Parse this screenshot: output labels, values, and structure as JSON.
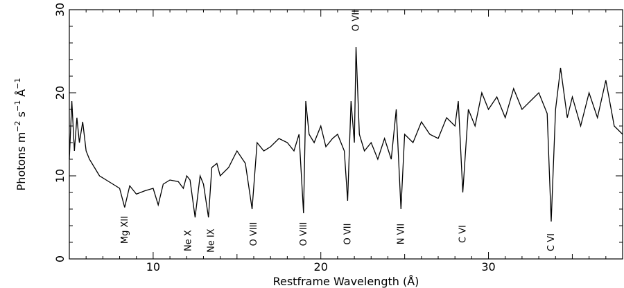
{
  "chart_data": {
    "type": "line",
    "title": "",
    "xlabel": "Restframe Wavelength (Å)",
    "ylabel": {
      "base": "Photons m",
      "exp1": "−2",
      "mid1": " s",
      "exp2": "−1",
      "mid2": " Å",
      "exp3": "−1"
    },
    "xlim": [
      5,
      38
    ],
    "ylim": [
      0,
      30
    ],
    "x_ticks": [
      10,
      20,
      30
    ],
    "y_ticks": [
      0,
      10,
      20,
      30
    ],
    "grid": false,
    "series": [
      {
        "x": [
          5.0,
          5.15,
          5.3,
          5.45,
          5.6,
          5.8,
          6.0,
          6.2,
          6.5,
          6.8,
          7.2,
          7.6,
          8.0,
          8.3,
          8.6,
          9.0,
          9.5,
          10.0,
          10.3,
          10.6,
          11.0,
          11.5,
          11.8,
          12.0,
          12.2,
          12.5,
          12.8,
          13.0,
          13.3,
          13.5,
          13.8,
          14.0,
          14.5,
          15.0,
          15.5,
          15.9,
          16.2,
          16.6,
          17.0,
          17.5,
          18.0,
          18.4,
          18.7,
          18.97,
          19.1,
          19.3,
          19.6,
          20.0,
          20.3,
          20.7,
          21.0,
          21.4,
          21.6,
          21.8,
          22.0,
          22.1,
          22.3,
          22.6,
          23.0,
          23.4,
          23.8,
          24.2,
          24.5,
          24.78,
          25.0,
          25.5,
          26.0,
          26.5,
          27.0,
          27.5,
          28.0,
          28.2,
          28.47,
          28.8,
          29.2,
          29.6,
          30.0,
          30.5,
          31.0,
          31.5,
          32.0,
          32.5,
          33.0,
          33.5,
          33.74,
          34.0,
          34.3,
          34.7,
          35.0,
          35.5,
          36.0,
          36.5,
          37.0,
          37.5,
          38.0
        ],
        "y": [
          12.0,
          19.0,
          13.0,
          17.0,
          14.0,
          16.5,
          13.0,
          12.0,
          11.0,
          10.0,
          9.5,
          9.0,
          8.5,
          6.2,
          8.8,
          7.8,
          8.2,
          8.5,
          6.5,
          9.0,
          9.5,
          9.3,
          8.5,
          10.0,
          9.5,
          5.0,
          10.0,
          9.0,
          5.0,
          11.0,
          11.5,
          10.0,
          11.0,
          13.0,
          11.5,
          6.0,
          14.0,
          13.0,
          13.5,
          14.5,
          14.0,
          13.0,
          15.0,
          5.5,
          19.0,
          15.0,
          14.0,
          16.0,
          13.5,
          14.5,
          15.0,
          13.0,
          7.0,
          19.0,
          14.0,
          25.5,
          15.0,
          13.0,
          14.0,
          12.0,
          14.5,
          12.0,
          18.0,
          6.0,
          15.0,
          14.0,
          16.5,
          15.0,
          14.5,
          17.0,
          16.0,
          19.0,
          8.0,
          18.0,
          16.0,
          20.0,
          18.0,
          19.5,
          17.0,
          20.5,
          18.0,
          19.0,
          20.0,
          17.5,
          4.5,
          18.0,
          23.0,
          17.0,
          19.5,
          16.0,
          20.0,
          17.0,
          21.5,
          16.0,
          15.0
        ]
      }
    ],
    "line_labels": [
      {
        "label": "Mg XII",
        "x": 8.3,
        "y": 3.5
      },
      {
        "label": "Ne X",
        "x": 12.1,
        "y": 2.2
      },
      {
        "label": "Ne IX",
        "x": 13.45,
        "y": 2.2
      },
      {
        "label": "O VIII",
        "x": 16.0,
        "y": 3.0
      },
      {
        "label": "O VIII",
        "x": 18.97,
        "y": 3.0
      },
      {
        "label": "O VII",
        "x": 21.6,
        "y": 3.0
      },
      {
        "label": "O VII",
        "x": 22.1,
        "y": 28.7
      },
      {
        "label": "N VII",
        "x": 24.78,
        "y": 3.0
      },
      {
        "label": "C VI",
        "x": 28.47,
        "y": 3.0
      },
      {
        "label": "C VI",
        "x": 33.74,
        "y": 2.0
      }
    ]
  }
}
